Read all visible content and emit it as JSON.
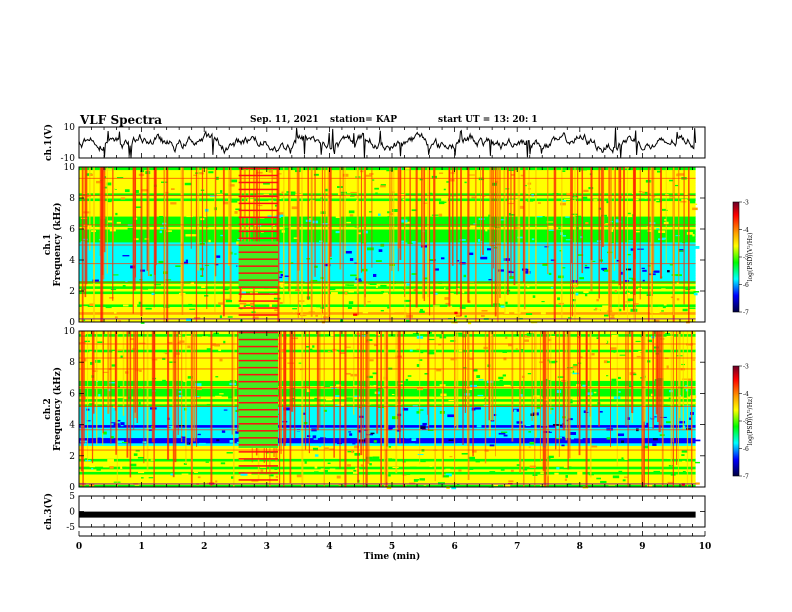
{
  "header": {
    "title": "VLF Spectra",
    "date": "Sep. 11, 2021",
    "station": "station= KAP",
    "start": "start  UT  =   13: 20: 1"
  },
  "chart_data": [
    {
      "type": "line",
      "panel": "ch1-waveform",
      "ylabel": "ch.1(V)",
      "xlim": [
        0,
        10
      ],
      "ylim": [
        -10,
        10
      ],
      "yticks": [
        "10",
        "-10"
      ],
      "line_color": "#000000"
    },
    {
      "type": "heatmap",
      "panel": "ch1-spectrogram",
      "ylabel": "ch.1",
      "ylabel2": "Frequency (kHz)",
      "xlim": [
        0,
        10
      ],
      "ylim": [
        0,
        10
      ],
      "yticks": [
        "0",
        "2",
        "4",
        "6",
        "8",
        "10"
      ],
      "colorbar": {
        "label": "log(PSD)(V²/Hz)",
        "range": [
          -7,
          -3
        ],
        "ticks": [
          "-3",
          "-4",
          "-5",
          "-6",
          "-7"
        ],
        "colors": [
          "#6a0028",
          "#ff0000",
          "#ffa000",
          "#ffff00",
          "#00ff00",
          "#00ffff",
          "#0000ff",
          "#000040"
        ]
      }
    },
    {
      "type": "heatmap",
      "panel": "ch2-spectrogram",
      "ylabel": "ch.2",
      "ylabel2": "Frequency (kHz)",
      "xlim": [
        0,
        10
      ],
      "ylim": [
        0,
        10
      ],
      "yticks": [
        "0",
        "2",
        "4",
        "6",
        "8",
        "10"
      ],
      "colorbar": {
        "label": "log(PSD)(V²/Hz)",
        "range": [
          -7,
          -3
        ],
        "ticks": [
          "-3",
          "-4",
          "-5",
          "-6",
          "-7"
        ]
      }
    },
    {
      "type": "line",
      "panel": "ch3-waveform",
      "ylabel": "ch.3(V)",
      "xlim": [
        0,
        10
      ],
      "ylim": [
        -5,
        5
      ],
      "yticks": [
        "5",
        "0",
        "-5"
      ],
      "xlabel": "Time (min)",
      "xticks": [
        "0",
        "1",
        "2",
        "3",
        "4",
        "5",
        "6",
        "7",
        "8",
        "9",
        "10"
      ],
      "line_color": "#000000",
      "trace_level": -1.0
    }
  ]
}
